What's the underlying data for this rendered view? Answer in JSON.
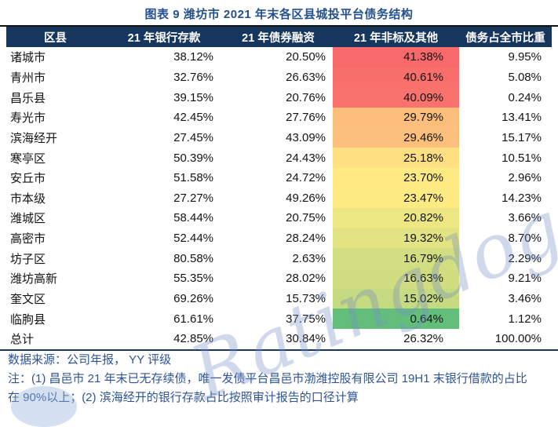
{
  "chart_data": {
    "type": "table",
    "title": "图表 9 潍坊市 2021 年末各区县城投平台债务结构",
    "columns": [
      "区县",
      "21 年银行存款",
      "21 年债券融资",
      "21 年非标及其他",
      "债务占全市比重"
    ],
    "rows": [
      {
        "name": "诸城市",
        "bank": "38.12%",
        "bond": "20.50%",
        "nonstd": "41.38%",
        "share": "9.95%",
        "heat": "#F8696B"
      },
      {
        "name": "青州市",
        "bank": "32.76%",
        "bond": "26.63%",
        "nonstd": "40.61%",
        "share": "5.08%",
        "heat": "#F86F6C"
      },
      {
        "name": "昌乐县",
        "bank": "39.15%",
        "bond": "20.76%",
        "nonstd": "40.09%",
        "share": "0.24%",
        "heat": "#F9726D"
      },
      {
        "name": "寿光市",
        "bank": "42.45%",
        "bond": "27.76%",
        "nonstd": "29.79%",
        "share": "13.41%",
        "heat": "#FDBE7B"
      },
      {
        "name": "滨海经开",
        "bank": "27.45%",
        "bond": "43.09%",
        "nonstd": "29.46%",
        "share": "15.17%",
        "heat": "#FDC07C"
      },
      {
        "name": "寒亭区",
        "bank": "50.39%",
        "bond": "24.43%",
        "nonstd": "25.18%",
        "share": "10.51%",
        "heat": "#FEDF82"
      },
      {
        "name": "安丘市",
        "bank": "51.58%",
        "bond": "24.72%",
        "nonstd": "23.70%",
        "share": "2.96%",
        "heat": "#FFEA84"
      },
      {
        "name": "市本级",
        "bank": "27.27%",
        "bond": "49.26%",
        "nonstd": "23.47%",
        "share": "14.23%",
        "heat": "#FEEB84"
      },
      {
        "name": "潍城区",
        "bank": "58.44%",
        "bond": "20.75%",
        "nonstd": "20.82%",
        "share": "3.66%",
        "heat": "#ECE683"
      },
      {
        "name": "高密市",
        "bank": "52.44%",
        "bond": "28.24%",
        "nonstd": "19.32%",
        "share": "8.70%",
        "heat": "#E2E382"
      },
      {
        "name": "坊子区",
        "bank": "80.58%",
        "bond": "2.63%",
        "nonstd": "16.79%",
        "share": "2.29%",
        "heat": "#D1DE81"
      },
      {
        "name": "潍坊高新",
        "bank": "55.35%",
        "bond": "28.02%",
        "nonstd": "16.63%",
        "share": "9.21%",
        "heat": "#D0DD81"
      },
      {
        "name": "奎文区",
        "bank": "69.26%",
        "bond": "15.73%",
        "nonstd": "15.02%",
        "share": "3.46%",
        "heat": "#C5DA81"
      },
      {
        "name": "临朐县",
        "bank": "61.61%",
        "bond": "37.75%",
        "nonstd": "0.64%",
        "share": "1.12%",
        "heat": "#63BE7B"
      },
      {
        "name": "总计",
        "bank": "42.85%",
        "bond": "30.84%",
        "nonstd": "26.32%",
        "share": "100.00%",
        "heat": ""
      }
    ],
    "heat_scale": {
      "column": "21 年非标及其他",
      "high": "#F8696B",
      "mid": "#FFEB84",
      "low": "#63BE7B"
    },
    "layout_hints": {
      "heat_column_index": 3,
      "number_alignment": "right",
      "grid": "off"
    }
  },
  "footer": {
    "source": "数据来源：公司年报， YY 评级",
    "note_line1": "注：(1) 昌邑市 21 年末已无存续债，唯一发债平台昌邑市渤潍控股有限公司 19H1 末银行借款的占比",
    "note_line2": "在 90%以上；(2) 滨海经开的银行存款占比按照审计报告的口径计算"
  },
  "watermark": "Ratingdog",
  "colors": {
    "title_text": "#24508C",
    "header_bg": "#17365D",
    "header_text": "#FFFFFF",
    "body_text": "#141414",
    "footer_text": "#2F5496",
    "border_top": "#111111",
    "border_bottom": "#17365D",
    "heat_high": "#F8696B",
    "heat_mid": "#FFEB84",
    "heat_low": "#63BE7B",
    "watermark_text": "#98ABD6"
  }
}
